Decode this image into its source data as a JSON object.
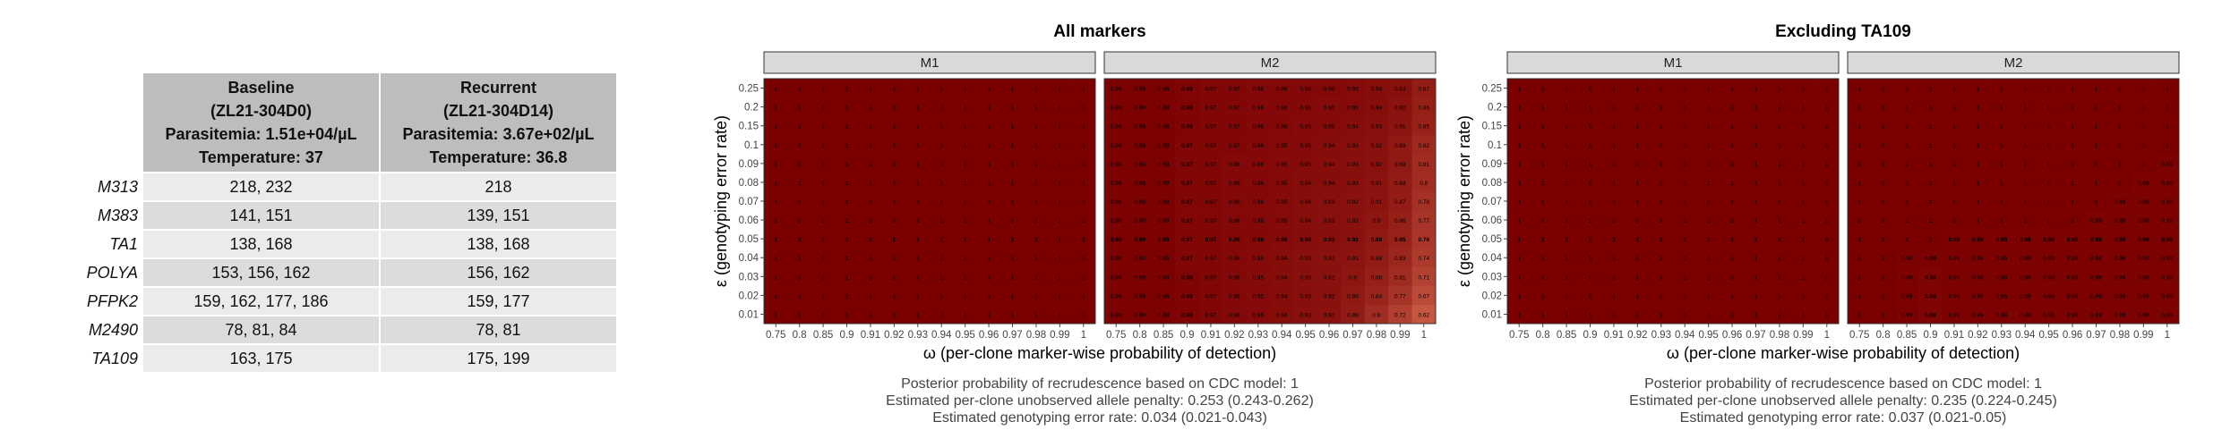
{
  "table": {
    "columns": [
      {
        "lines": [
          "Baseline",
          "(ZL21-304D0)",
          "Parasitemia: 1.51e+04/µL",
          "Temperature: 37"
        ]
      },
      {
        "lines": [
          "Recurrent",
          "(ZL21-304D14)",
          "Parasitemia: 3.67e+02/µL",
          "Temperature: 36.8"
        ]
      }
    ],
    "rows": [
      {
        "marker": "M313",
        "baseline": "218, 232",
        "recurrent": "218"
      },
      {
        "marker": "M383",
        "baseline": "141, 151",
        "recurrent": "139, 151"
      },
      {
        "marker": "TA1",
        "baseline": "138, 168",
        "recurrent": "138, 168"
      },
      {
        "marker": "POLYA",
        "baseline": "153, 156, 162",
        "recurrent": "156, 162"
      },
      {
        "marker": "PFPK2",
        "baseline": "159, 162, 177, 186",
        "recurrent": "159, 177"
      },
      {
        "marker": "M2490",
        "baseline": "78, 81, 84",
        "recurrent": "78, 81"
      },
      {
        "marker": "TA109",
        "baseline": "163, 175",
        "recurrent": "175, 199"
      }
    ]
  },
  "chart_data": [
    {
      "type": "heatmap",
      "title": "All markers",
      "xlabel": "ω (per-clone marker-wise probability of detection)",
      "ylabel": "ε (genotyping error rate)",
      "x": [
        "0.75",
        "0.8",
        "0.85",
        "0.9",
        "0.91",
        "0.92",
        "0.93",
        "0.94",
        "0.95",
        "0.96",
        "0.97",
        "0.98",
        "0.99",
        "1"
      ],
      "y": [
        "0.01",
        "0.02",
        "0.03",
        "0.04",
        "0.05",
        "0.06",
        "0.07",
        "0.08",
        "0.09",
        "0.1",
        "0.15",
        "0.2",
        "0.25"
      ],
      "highlight_y": "0.05",
      "highlight_x": "0.9",
      "panels": [
        {
          "name": "M1",
          "values": [
            [
              1,
              1,
              1,
              1,
              1,
              1,
              1,
              1,
              1,
              1,
              1,
              1,
              1,
              1
            ],
            [
              1,
              1,
              1,
              1,
              1,
              1,
              1,
              1,
              1,
              1,
              1,
              1,
              1,
              1
            ],
            [
              1,
              1,
              1,
              1,
              1,
              1,
              1,
              1,
              1,
              1,
              1,
              1,
              1,
              1
            ],
            [
              1,
              1,
              1,
              1,
              1,
              1,
              1,
              1,
              1,
              1,
              1,
              1,
              1,
              1
            ],
            [
              1,
              1,
              1,
              1,
              1,
              1,
              1,
              1,
              1,
              1,
              1,
              1,
              1,
              1
            ],
            [
              1,
              1,
              1,
              1,
              1,
              1,
              1,
              1,
              1,
              1,
              1,
              1,
              1,
              1
            ],
            [
              1,
              1,
              1,
              1,
              1,
              1,
              1,
              1,
              1,
              1,
              1,
              1,
              1,
              1
            ],
            [
              1,
              1,
              1,
              1,
              1,
              1,
              1,
              1,
              1,
              1,
              1,
              1,
              1,
              1
            ],
            [
              1,
              1,
              1,
              1,
              1,
              1,
              1,
              1,
              1,
              1,
              1,
              1,
              1,
              1
            ],
            [
              1,
              1,
              1,
              1,
              1,
              1,
              1,
              1,
              1,
              1,
              1,
              1,
              1,
              1
            ],
            [
              1,
              1,
              1,
              1,
              1,
              1,
              1,
              1,
              1,
              1,
              1,
              1,
              1,
              1
            ],
            [
              1,
              1,
              1,
              1,
              1,
              1,
              1,
              1,
              1,
              1,
              1,
              1,
              1,
              1
            ],
            [
              1,
              1,
              1,
              1,
              1,
              1,
              1,
              1,
              1,
              1,
              1,
              1,
              1,
              1
            ]
          ]
        },
        {
          "name": "M2",
          "values": [
            [
              0.99,
              0.99,
              0.99,
              0.98,
              0.97,
              0.96,
              0.95,
              0.94,
              0.93,
              0.92,
              0.88,
              0.8,
              0.72,
              0.62
            ],
            [
              0.99,
              0.99,
              0.99,
              0.98,
              0.97,
              0.96,
              0.95,
              0.94,
              0.93,
              0.92,
              0.89,
              0.84,
              0.77,
              0.67
            ],
            [
              0.99,
              0.99,
              0.99,
              0.98,
              0.97,
              0.96,
              0.95,
              0.94,
              0.93,
              0.92,
              0.9,
              0.86,
              0.81,
              0.71
            ],
            [
              0.99,
              0.99,
              0.99,
              0.97,
              0.97,
              0.96,
              0.95,
              0.94,
              0.93,
              0.92,
              0.91,
              0.88,
              0.83,
              0.74
            ],
            [
              0.99,
              0.99,
              0.99,
              0.97,
              0.97,
              0.96,
              0.96,
              0.95,
              0.94,
              0.93,
              0.92,
              0.89,
              0.85,
              0.76
            ],
            [
              0.99,
              0.99,
              0.99,
              0.97,
              0.97,
              0.96,
              0.96,
              0.95,
              0.94,
              0.93,
              0.92,
              0.9,
              0.86,
              0.77
            ],
            [
              0.99,
              0.99,
              0.99,
              0.97,
              0.97,
              0.96,
              0.96,
              0.95,
              0.94,
              0.93,
              0.92,
              0.91,
              0.87,
              0.78
            ],
            [
              0.99,
              0.99,
              0.99,
              0.97,
              0.97,
              0.96,
              0.96,
              0.95,
              0.94,
              0.94,
              0.93,
              0.91,
              0.88,
              0.8
            ],
            [
              0.99,
              0.99,
              0.99,
              0.97,
              0.97,
              0.96,
              0.96,
              0.95,
              0.95,
              0.94,
              0.93,
              0.92,
              0.89,
              0.81
            ],
            [
              0.99,
              0.99,
              0.99,
              0.97,
              0.97,
              0.97,
              0.96,
              0.95,
              0.95,
              0.94,
              0.93,
              0.92,
              0.89,
              0.82
            ],
            [
              0.99,
              0.99,
              0.99,
              0.98,
              0.97,
              0.97,
              0.96,
              0.96,
              0.95,
              0.95,
              0.94,
              0.93,
              0.91,
              0.85
            ],
            [
              0.99,
              0.99,
              0.99,
              0.98,
              0.97,
              0.97,
              0.96,
              0.96,
              0.96,
              0.95,
              0.95,
              0.94,
              0.92,
              0.86
            ],
            [
              0.99,
              0.99,
              0.99,
              0.98,
              0.97,
              0.97,
              0.96,
              0.96,
              0.96,
              0.96,
              0.95,
              0.94,
              0.93,
              0.87
            ]
          ]
        }
      ],
      "caption": [
        "Posterior probability of recrudescence based on CDC model: 1",
        "Estimated per-clone unobserved allele penalty: 0.253 (0.243-0.262)",
        "Estimated genotyping error rate: 0.034 (0.021-0.043)"
      ]
    },
    {
      "type": "heatmap",
      "title": "Excluding TA109",
      "xlabel": "ω (per-clone marker-wise probability of detection)",
      "ylabel": "ε (genotyping error rate)",
      "x": [
        "0.75",
        "0.8",
        "0.85",
        "0.9",
        "0.91",
        "0.92",
        "0.93",
        "0.94",
        "0.95",
        "0.96",
        "0.97",
        "0.98",
        "0.99",
        "1"
      ],
      "y": [
        "0.01",
        "0.02",
        "0.03",
        "0.04",
        "0.05",
        "0.06",
        "0.07",
        "0.08",
        "0.09",
        "0.1",
        "0.15",
        "0.2",
        "0.25"
      ],
      "highlight_y": "0.05",
      "highlight_x": "0.9",
      "panels": [
        {
          "name": "M1",
          "values": [
            [
              1,
              1,
              1,
              1,
              1,
              1,
              1,
              1,
              1,
              1,
              1,
              1,
              1,
              1
            ],
            [
              1,
              1,
              1,
              1,
              1,
              1,
              1,
              1,
              1,
              1,
              1,
              1,
              1,
              1
            ],
            [
              1,
              1,
              1,
              1,
              1,
              1,
              1,
              1,
              1,
              1,
              1,
              1,
              1,
              1
            ],
            [
              1,
              1,
              1,
              1,
              1,
              1,
              1,
              1,
              1,
              1,
              1,
              1,
              1,
              1
            ],
            [
              1,
              1,
              1,
              1,
              1,
              1,
              1,
              1,
              1,
              1,
              1,
              1,
              1,
              1
            ],
            [
              1,
              1,
              1,
              1,
              1,
              1,
              1,
              1,
              1,
              1,
              1,
              1,
              1,
              1
            ],
            [
              1,
              1,
              1,
              1,
              1,
              1,
              1,
              1,
              1,
              1,
              1,
              1,
              1,
              1
            ],
            [
              1,
              1,
              1,
              1,
              1,
              1,
              1,
              1,
              1,
              1,
              1,
              1,
              1,
              1
            ],
            [
              1,
              1,
              1,
              1,
              1,
              1,
              1,
              1,
              1,
              1,
              1,
              1,
              1,
              1
            ],
            [
              1,
              1,
              1,
              1,
              1,
              1,
              1,
              1,
              1,
              1,
              1,
              1,
              1,
              1
            ],
            [
              1,
              1,
              1,
              1,
              1,
              1,
              1,
              1,
              1,
              1,
              1,
              1,
              1,
              1
            ],
            [
              1,
              1,
              1,
              1,
              1,
              1,
              1,
              1,
              1,
              1,
              1,
              1,
              1,
              1
            ],
            [
              1,
              1,
              1,
              1,
              1,
              1,
              1,
              1,
              1,
              1,
              1,
              1,
              1,
              1
            ]
          ]
        },
        {
          "name": "M2",
          "values": [
            [
              1,
              1,
              0.99,
              0.98,
              0.99,
              0.99,
              0.99,
              0.99,
              0.99,
              0.99,
              0.99,
              0.99,
              0.99,
              0.99
            ],
            [
              1,
              1,
              0.99,
              0.98,
              0.99,
              0.99,
              0.99,
              0.99,
              0.99,
              0.99,
              0.99,
              0.99,
              0.99,
              0.99
            ],
            [
              1,
              1,
              0.99,
              0.98,
              0.99,
              0.99,
              0.99,
              0.99,
              0.99,
              0.99,
              0.99,
              0.99,
              0.99,
              0.99
            ],
            [
              1,
              1,
              0.99,
              0.99,
              0.99,
              0.99,
              0.99,
              0.99,
              0.99,
              0.99,
              0.99,
              0.99,
              0.99,
              0.99
            ],
            [
              1,
              1,
              1,
              1,
              0.99,
              0.99,
              0.99,
              0.99,
              0.99,
              0.99,
              0.99,
              0.99,
              0.99,
              0.99
            ],
            [
              1,
              1,
              1,
              1,
              1,
              1,
              1,
              1,
              1,
              1,
              0.99,
              0.99,
              0.99,
              0.99
            ],
            [
              1,
              1,
              1,
              1,
              1,
              1,
              1,
              1,
              1,
              1,
              1,
              0.99,
              0.99,
              0.99
            ],
            [
              1,
              1,
              1,
              1,
              1,
              1,
              1,
              1,
              1,
              1,
              1,
              1,
              0.99,
              0.99
            ],
            [
              1,
              1,
              1,
              1,
              1,
              1,
              1,
              1,
              1,
              1,
              1,
              1,
              1,
              0.99
            ],
            [
              1,
              1,
              1,
              1,
              1,
              1,
              1,
              1,
              1,
              1,
              1,
              1,
              1,
              1
            ],
            [
              1,
              1,
              1,
              1,
              1,
              1,
              1,
              1,
              1,
              1,
              1,
              1,
              1,
              1
            ],
            [
              1,
              1,
              1,
              1,
              1,
              1,
              1,
              1,
              1,
              1,
              1,
              1,
              1,
              1
            ],
            [
              1,
              1,
              1,
              1,
              1,
              1,
              1,
              1,
              1,
              1,
              1,
              1,
              1,
              1
            ]
          ]
        }
      ],
      "caption": [
        "Posterior probability of recrudescence based on CDC model: 1",
        "Estimated per-clone unobserved allele penalty: 0.235 (0.224-0.245)",
        "Estimated genotyping error rate: 0.037 (0.021-0.05)"
      ]
    }
  ],
  "colors": {
    "high": "#7a0000",
    "low": "#c85a45",
    "strip": "#d9d9d9",
    "table_header": "#bdbdbd",
    "row_odd": "#ebebeb",
    "row_even": "#dcdcdc"
  }
}
